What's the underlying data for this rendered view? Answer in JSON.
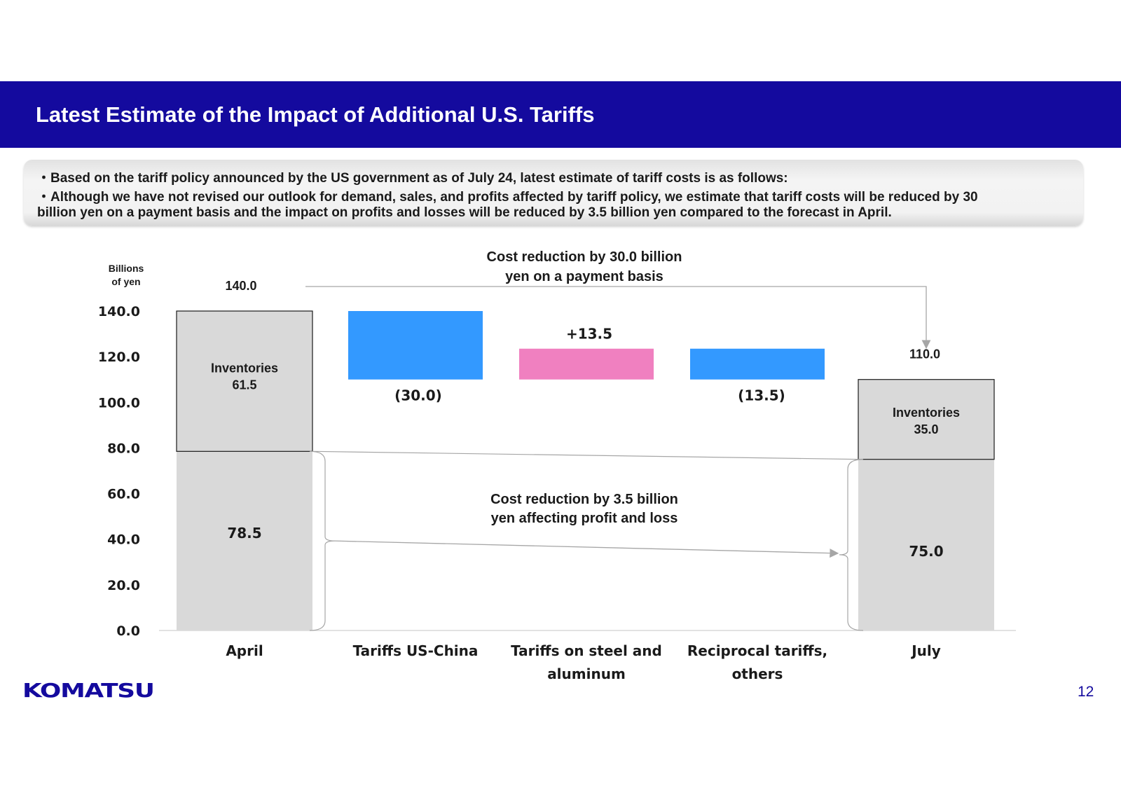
{
  "slide": {
    "title": "Latest Estimate of the Impact of Additional U.S. Tariffs",
    "summary": [
      "・Based on the tariff policy announced by the US government as of July 24, latest estimate of tariff costs is as follows:",
      "・Although we have not revised our outlook for demand, sales, and profits affected by tariff policy, we estimate that tariff costs will be reduced by 30",
      "billion yen on a payment basis and the impact on profits and losses will be reduced by 3.5 billion yen compared to the forecast in April."
    ],
    "logo_text": "KOMATSU",
    "page_number": "12",
    "colors": {
      "title_bar": "#140a9e",
      "decrease": "#3399ff",
      "increase": "#f080c0",
      "stack": "#d9d9d9"
    }
  },
  "chart_data": {
    "type": "bar",
    "subtype": "waterfall",
    "ylabel": "Billions\nof yen",
    "ylim": [
      0,
      140
    ],
    "yticks": [
      "0.0",
      "20.0",
      "40.0",
      "60.0",
      "80.0",
      "100.0",
      "120.0",
      "140.0"
    ],
    "categories": [
      "April",
      "Tariffs US-China",
      "Tariffs on steel and\naluminum",
      "Reciprocal tariffs,\nothers",
      "July"
    ],
    "totals": [
      {
        "category": "April",
        "total": 140.0,
        "total_label": "140.0",
        "segments": [
          {
            "label": "78.5",
            "value": 78.5
          },
          {
            "label": "Inventories\n61.5",
            "value": 61.5
          }
        ]
      },
      {
        "category": "July",
        "total": 110.0,
        "total_label": "110.0",
        "segments": [
          {
            "label": "75.0",
            "value": 75.0
          },
          {
            "label": "Inventories\n35.0",
            "value": 35.0
          }
        ]
      }
    ],
    "changes": [
      {
        "category": "Tariffs US-China",
        "value": -30.0,
        "label": "(30.0)"
      },
      {
        "category": "Tariffs on steel and\naluminum",
        "value": 13.5,
        "label": "+13.5"
      },
      {
        "category": "Reciprocal tariffs,\nothers",
        "value": -13.5,
        "label": "(13.5)"
      }
    ],
    "annotations": [
      "Cost reduction by 30.0 billion\nyen on a payment basis",
      "Cost reduction by 3.5 billion\nyen affecting profit and loss"
    ]
  }
}
